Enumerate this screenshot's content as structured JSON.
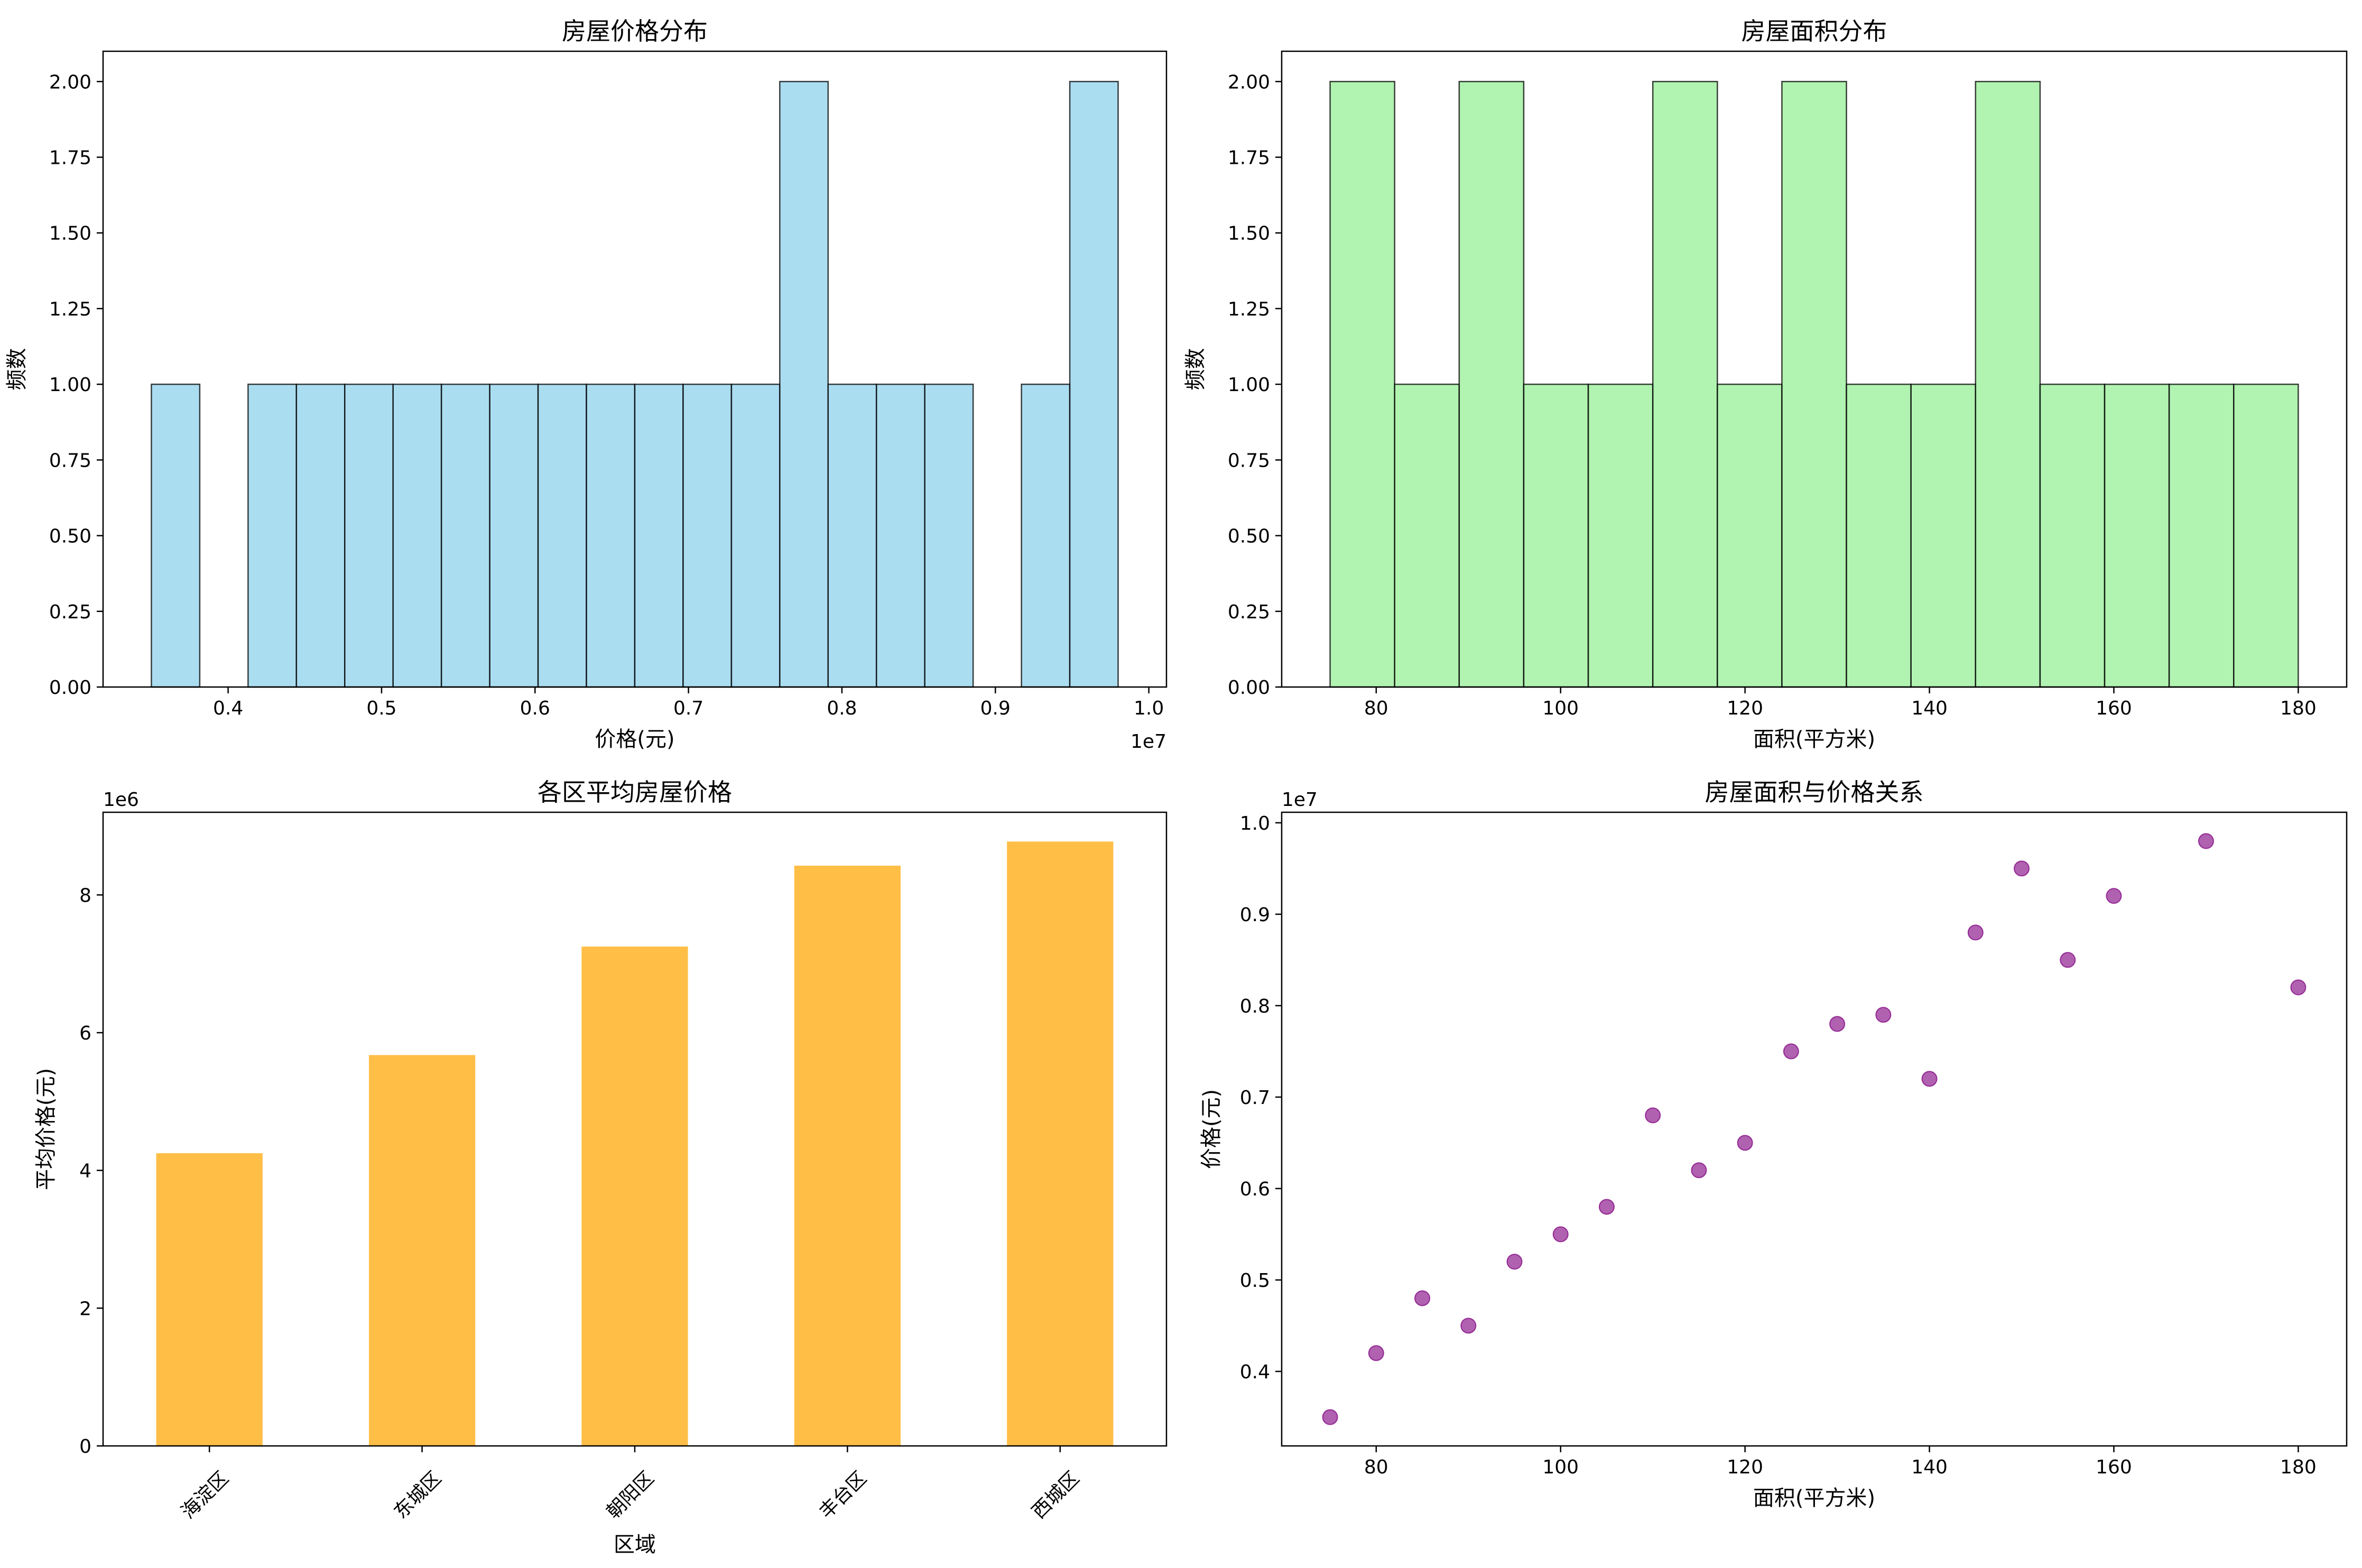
{
  "chart_data": [
    {
      "type": "bar",
      "title": "房屋价格分布",
      "xlabel": "价格(元)",
      "ylabel": "频数",
      "x_offset_label": "1e7",
      "bin_edges": [
        3500000,
        3815000,
        4130000,
        4445000,
        4760000,
        5075000,
        5390000,
        5705000,
        6020000,
        6335000,
        6650000,
        6965000,
        7280000,
        7595000,
        7910000,
        8225000,
        8540000,
        8855000,
        9170000,
        9485000,
        9800000
      ],
      "counts": [
        1,
        0,
        1,
        1,
        1,
        1,
        1,
        1,
        1,
        1,
        1,
        1,
        1,
        2,
        1,
        1,
        1,
        0,
        1,
        2
      ],
      "xticks": [
        0.4,
        0.5,
        0.6,
        0.7,
        0.8,
        0.9,
        1.0
      ],
      "xtick_labels": [
        "0.4",
        "0.5",
        "0.6",
        "0.7",
        "0.8",
        "0.9",
        "1.0"
      ],
      "xlim": [
        0.3185,
        1.0115
      ],
      "yticks": [
        0,
        0.25,
        0.5,
        0.75,
        1.0,
        1.25,
        1.5,
        1.75,
        2.0
      ],
      "ytick_labels": [
        "0.00",
        "0.25",
        "0.50",
        "0.75",
        "1.00",
        "1.25",
        "1.50",
        "1.75",
        "2.00"
      ],
      "ylim": [
        0,
        2.1
      ],
      "color": "#87CEEB",
      "grid": false
    },
    {
      "type": "bar",
      "title": "房屋面积分布",
      "xlabel": "面积(平方米)",
      "ylabel": "频数",
      "bin_edges": [
        75,
        82,
        89,
        96,
        103,
        110,
        117,
        124,
        131,
        138,
        145,
        152,
        159,
        166,
        173,
        180
      ],
      "counts": [
        2,
        1,
        2,
        1,
        1,
        2,
        1,
        2,
        1,
        1,
        2,
        1,
        1,
        1,
        1
      ],
      "xticks": [
        80,
        100,
        120,
        140,
        160,
        180
      ],
      "xtick_labels": [
        "80",
        "100",
        "120",
        "140",
        "160",
        "180"
      ],
      "xlim": [
        69.75,
        185.25
      ],
      "yticks": [
        0,
        0.25,
        0.5,
        0.75,
        1.0,
        1.25,
        1.5,
        1.75,
        2.0
      ],
      "ytick_labels": [
        "0.00",
        "0.25",
        "0.50",
        "0.75",
        "1.00",
        "1.25",
        "1.50",
        "1.75",
        "2.00"
      ],
      "ylim": [
        0,
        2.1
      ],
      "color": "#90EE90",
      "grid": false
    },
    {
      "type": "bar",
      "title": "各区平均房屋价格",
      "xlabel": "区域",
      "ylabel": "平均价格(元)",
      "y_offset_label": "1e6",
      "categories": [
        "海淀区",
        "东城区",
        "朝阳区",
        "丰台区",
        "西城区"
      ],
      "values": [
        4250000,
        5675000,
        7250000,
        8425000,
        8775000
      ],
      "yticks": [
        0,
        2,
        4,
        6,
        8
      ],
      "ytick_labels": [
        "0",
        "2",
        "4",
        "6",
        "8"
      ],
      "ylim": [
        0,
        9.2
      ],
      "color": "#FFB732",
      "grid": false
    },
    {
      "type": "scatter",
      "title": "房屋面积与价格关系",
      "xlabel": "面积(平方米)",
      "ylabel": "价格(元)",
      "y_offset_label": "1e7",
      "x": [
        75,
        80,
        85,
        90,
        95,
        100,
        105,
        110,
        115,
        120,
        125,
        130,
        135,
        140,
        145,
        150,
        155,
        160,
        170,
        180
      ],
      "y": [
        3500000,
        4200000,
        4800000,
        4500000,
        5200000,
        5500000,
        5800000,
        6800000,
        6200000,
        6500000,
        7500000,
        7800000,
        7900000,
        7200000,
        8800000,
        9500000,
        8500000,
        9200000,
        9800000,
        8200000
      ],
      "xticks": [
        80,
        100,
        120,
        140,
        160,
        180
      ],
      "xtick_labels": [
        "80",
        "100",
        "120",
        "140",
        "160",
        "180"
      ],
      "xlim": [
        69.75,
        185.25
      ],
      "yticks": [
        0.4,
        0.5,
        0.6,
        0.7,
        0.8,
        0.9,
        1.0
      ],
      "ytick_labels": [
        "0.4",
        "0.5",
        "0.6",
        "0.7",
        "0.8",
        "0.9",
        "1.0"
      ],
      "ylim": [
        0.3185,
        1.0115
      ],
      "color": "#800080",
      "grid": false
    }
  ]
}
